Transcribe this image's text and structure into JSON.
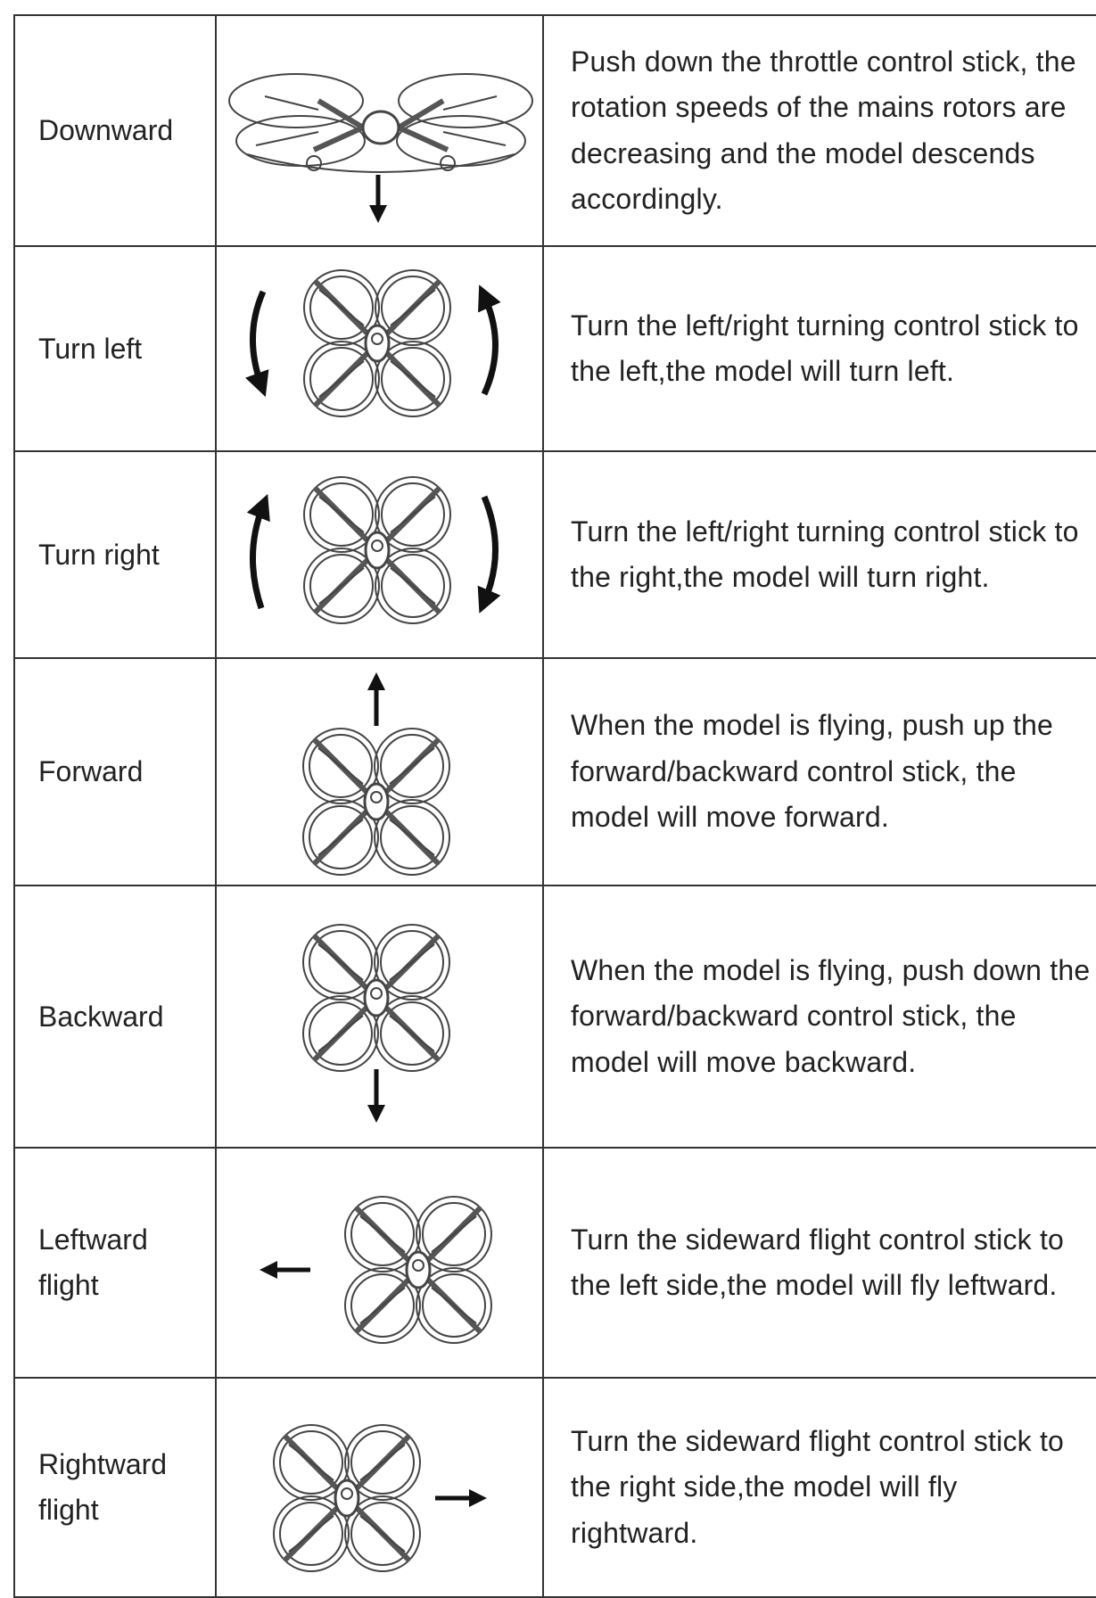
{
  "table": {
    "rows": [
      {
        "label": "Downward",
        "description": "Push down the throttle control stick, the rotation speeds of the mains rotors are decreasing and the model descends accordingly."
      },
      {
        "label": "Turn left",
        "description": "Turn the left/right turning control stick to the left,the model will turn left."
      },
      {
        "label": "Turn right",
        "description": "Turn the left/right turning control stick to the right,the model will turn right."
      },
      {
        "label": "Forward",
        "description": "When the model is flying, push up the forward/backward control stick, the model will move forward."
      },
      {
        "label": "Backward",
        "description": "When the model is flying, push down the forward/backward control stick, the model will move backward."
      },
      {
        "label": "Leftward flight",
        "description": "Turn the sideward flight control stick to the left side,the model will fly leftward."
      },
      {
        "label": "Rightward flight",
        "description": "Turn the sideward flight control stick to the right side,the model will fly rightward."
      }
    ]
  }
}
